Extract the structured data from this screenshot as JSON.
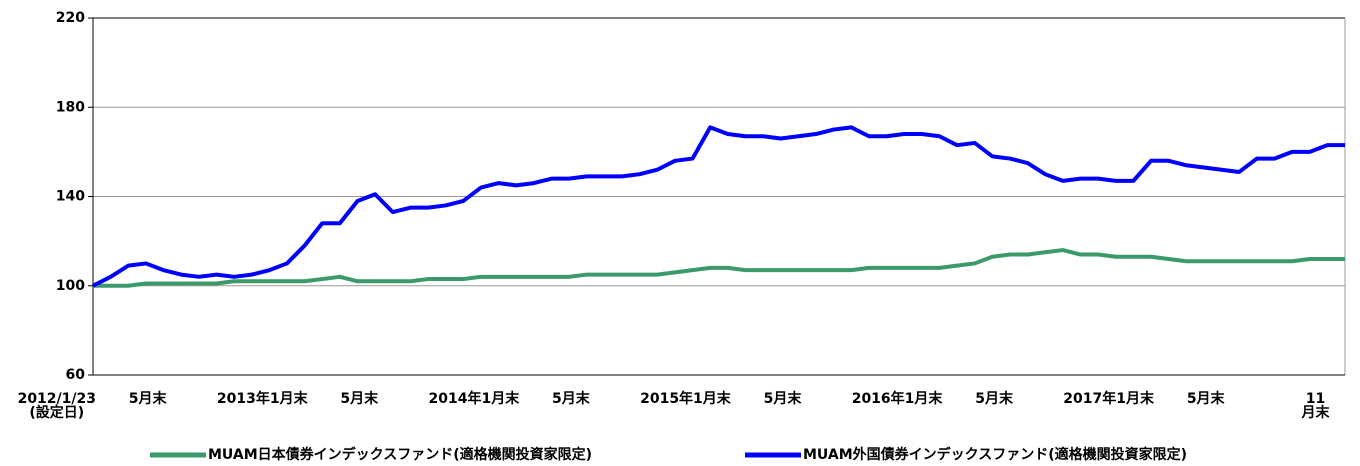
{
  "chart_data": {
    "type": "line",
    "categories": [
      "2012/1/23\n(設定日)",
      null,
      null,
      null,
      "5月末",
      null,
      null,
      null,
      null,
      null,
      null,
      null,
      "2013年1月末",
      null,
      null,
      null,
      "5月末",
      null,
      null,
      null,
      null,
      null,
      null,
      null,
      "2014年1月末",
      null,
      null,
      null,
      "5月末",
      null,
      null,
      null,
      null,
      null,
      null,
      null,
      "2015年1月末",
      null,
      null,
      null,
      "5月末",
      null,
      null,
      null,
      null,
      null,
      null,
      null,
      "2016年1月末",
      null,
      null,
      null,
      "5月末",
      null,
      null,
      null,
      null,
      null,
      null,
      null,
      "2017年1月末",
      null,
      null,
      null,
      "5月末",
      null,
      null,
      null,
      null,
      null,
      "11月末",
      null
    ],
    "series": [
      {
        "name": "MUAM日本債券インデックスファンド(適格機関投資家限定)",
        "color": "#3a9a6a",
        "values": [
          100,
          100,
          100,
          101,
          101,
          101,
          101,
          101,
          102,
          102,
          102,
          102,
          102,
          103,
          104,
          102,
          102,
          102,
          102,
          103,
          103,
          103,
          104,
          104,
          104,
          104,
          104,
          104,
          105,
          105,
          105,
          105,
          105,
          106,
          107,
          108,
          108,
          107,
          107,
          107,
          107,
          107,
          107,
          107,
          108,
          108,
          108,
          108,
          108,
          109,
          110,
          113,
          114,
          114,
          115,
          116,
          114,
          114,
          113,
          113,
          113,
          112,
          111,
          111,
          111,
          111,
          111,
          111,
          111,
          112,
          112,
          112
        ]
      },
      {
        "name": "MUAM外国債券インデックスファンド(適格機関投資家限定)",
        "color": "#0000ff",
        "values": [
          100,
          104,
          109,
          110,
          107,
          105,
          104,
          105,
          104,
          105,
          107,
          110,
          118,
          128,
          128,
          138,
          141,
          133,
          135,
          135,
          136,
          138,
          144,
          146,
          145,
          146,
          148,
          148,
          149,
          149,
          149,
          150,
          152,
          156,
          157,
          171,
          168,
          167,
          167,
          166,
          167,
          168,
          170,
          171,
          167,
          167,
          168,
          168,
          167,
          163,
          164,
          158,
          157,
          155,
          150,
          147,
          148,
          148,
          147,
          147,
          156,
          156,
          154,
          153,
          152,
          151,
          157,
          157,
          160,
          160,
          163,
          163
        ]
      }
    ],
    "ylim": [
      60,
      220
    ],
    "yticks": [
      60,
      100,
      140,
      180,
      220
    ],
    "grid": true
  }
}
